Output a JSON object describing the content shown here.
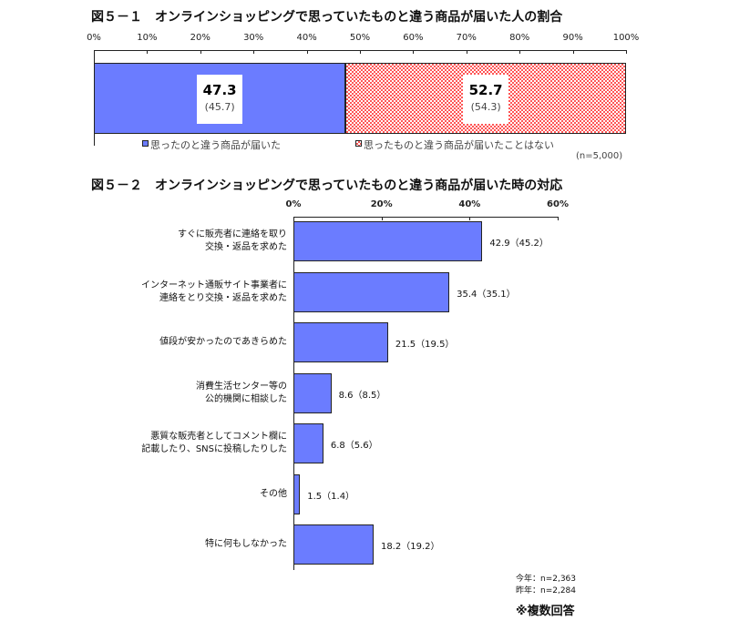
{
  "chart_data": [
    {
      "type": "bar",
      "stacked": true,
      "orientation": "horizontal",
      "title": "図５－１　オンラインショッピングで思っていたものと違う商品が届いた人の割合",
      "xticks": [
        "0%",
        "10%",
        "20%",
        "30%",
        "40%",
        "50%",
        "60%",
        "70%",
        "80%",
        "90%",
        "100%"
      ],
      "xlim": [
        0,
        100
      ],
      "series": [
        {
          "name": "思ったのと違う商品が届いた",
          "value": 47.3,
          "prev_label": "(45.7)",
          "value_label": "47.3",
          "color": "#6b7cff"
        },
        {
          "name": "思ったものと違う商品が届いたことはない",
          "value": 52.7,
          "prev_label": "(54.3)",
          "value_label": "52.7",
          "color": "#ff5555"
        }
      ],
      "note": "(n=5,000)",
      "legend": "bottom"
    },
    {
      "type": "bar",
      "orientation": "horizontal",
      "title": "図５－２　オンラインショッピングで思っていたものと違う商品が届いた時の対応",
      "xticks": [
        "0%",
        "20%",
        "40%",
        "60%"
      ],
      "xlim": [
        0,
        60
      ],
      "categories": [
        [
          "すぐに販売者に連絡を取り",
          "交換・返品を求めた"
        ],
        [
          "インターネット通販サイト事業者に",
          "連絡をとり交換・返品を求めた"
        ],
        [
          "値段が安かったのであきらめた"
        ],
        [
          "消費生活センター等の",
          "公的機関に相談した"
        ],
        [
          "悪質な販売者としてコメント欄に",
          "記載したり、SNSに投稿したりした"
        ],
        [
          "その他"
        ],
        [
          "特に何もしなかった"
        ]
      ],
      "values": [
        42.9,
        35.4,
        21.5,
        8.6,
        6.8,
        1.5,
        18.2
      ],
      "labels": [
        "42.9（45.2）",
        "35.4（35.1）",
        "21.5（19.5）",
        "8.6（8.5）",
        "6.8（5.6）",
        "1.5（1.4）",
        "18.2（19.2）"
      ],
      "notes": [
        "今年：n=2,363",
        "昨年：n=2,284"
      ],
      "footnote": "※複数回答"
    }
  ]
}
